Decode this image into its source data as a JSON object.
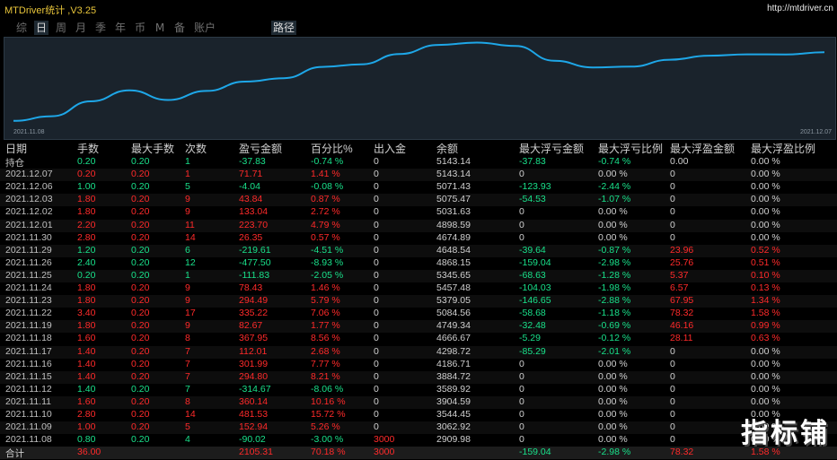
{
  "window": {
    "title": "MTDriver统计 ,V3.25",
    "url": "http://mtdriver.cn"
  },
  "tabs": [
    "综",
    "日",
    "周",
    "月",
    "季",
    "年",
    "币",
    "M",
    "备",
    "账户",
    "路径"
  ],
  "active_tabs": [
    1,
    10
  ],
  "chart": {
    "start_label": "2021.11.08",
    "end_label": "2021.12.07",
    "line_color": "#1ea7e8",
    "values": [
      2909.98,
      3062.92,
      3544.45,
      3904.59,
      3589.92,
      3884.72,
      4186.71,
      4298.72,
      4666.67,
      4749.34,
      5084.56,
      5379.05,
      5457.48,
      5345.65,
      4868.15,
      4648.54,
      4674.89,
      4898.59,
      5031.63,
      5075.47,
      5071.43,
      5143.14
    ]
  },
  "columns": [
    "日期",
    "手数",
    "最大手数",
    "次数",
    "盈亏金额",
    "百分比%",
    "出入金",
    "余额",
    "最大浮亏金额",
    "最大浮亏比例",
    "最大浮盈金额",
    "最大浮盈比例"
  ],
  "rows": [
    [
      "持仓",
      "0.20",
      "0.20",
      "1",
      "-37.83",
      "-0.74 %",
      "0",
      "5143.14",
      "-37.83",
      "-0.74 %",
      "0.00",
      "0.00 %"
    ],
    [
      "2021.12.07",
      "0.20",
      "0.20",
      "1",
      "71.71",
      "1.41 %",
      "0",
      "5143.14",
      "0",
      "0.00 %",
      "0",
      "0.00 %"
    ],
    [
      "2021.12.06",
      "1.00",
      "0.20",
      "5",
      "-4.04",
      "-0.08 %",
      "0",
      "5071.43",
      "-123.93",
      "-2.44 %",
      "0",
      "0.00 %"
    ],
    [
      "2021.12.03",
      "1.80",
      "0.20",
      "9",
      "43.84",
      "0.87 %",
      "0",
      "5075.47",
      "-54.53",
      "-1.07 %",
      "0",
      "0.00 %"
    ],
    [
      "2021.12.02",
      "1.80",
      "0.20",
      "9",
      "133.04",
      "2.72 %",
      "0",
      "5031.63",
      "0",
      "0.00 %",
      "0",
      "0.00 %"
    ],
    [
      "2021.12.01",
      "2.20",
      "0.20",
      "11",
      "223.70",
      "4.79 %",
      "0",
      "4898.59",
      "0",
      "0.00 %",
      "0",
      "0.00 %"
    ],
    [
      "2021.11.30",
      "2.80",
      "0.20",
      "14",
      "26.35",
      "0.57 %",
      "0",
      "4674.89",
      "0",
      "0.00 %",
      "0",
      "0.00 %"
    ],
    [
      "2021.11.29",
      "1.20",
      "0.20",
      "6",
      "-219.61",
      "-4.51 %",
      "0",
      "4648.54",
      "-39.64",
      "-0.87 %",
      "23.96",
      "0.52 %"
    ],
    [
      "2021.11.26",
      "2.40",
      "0.20",
      "12",
      "-477.50",
      "-8.93 %",
      "0",
      "4868.15",
      "-159.04",
      "-2.98 %",
      "25.76",
      "0.51 %"
    ],
    [
      "2021.11.25",
      "0.20",
      "0.20",
      "1",
      "-111.83",
      "-2.05 %",
      "0",
      "5345.65",
      "-68.63",
      "-1.28 %",
      "5.37",
      "0.10 %"
    ],
    [
      "2021.11.24",
      "1.80",
      "0.20",
      "9",
      "78.43",
      "1.46 %",
      "0",
      "5457.48",
      "-104.03",
      "-1.98 %",
      "6.57",
      "0.13 %"
    ],
    [
      "2021.11.23",
      "1.80",
      "0.20",
      "9",
      "294.49",
      "5.79 %",
      "0",
      "5379.05",
      "-146.65",
      "-2.88 %",
      "67.95",
      "1.34 %"
    ],
    [
      "2021.11.22",
      "3.40",
      "0.20",
      "17",
      "335.22",
      "7.06 %",
      "0",
      "5084.56",
      "-58.68",
      "-1.18 %",
      "78.32",
      "1.58 %"
    ],
    [
      "2021.11.19",
      "1.80",
      "0.20",
      "9",
      "82.67",
      "1.77 %",
      "0",
      "4749.34",
      "-32.48",
      "-0.69 %",
      "46.16",
      "0.99 %"
    ],
    [
      "2021.11.18",
      "1.60",
      "0.20",
      "8",
      "367.95",
      "8.56 %",
      "0",
      "4666.67",
      "-5.29",
      "-0.12 %",
      "28.11",
      "0.63 %"
    ],
    [
      "2021.11.17",
      "1.40",
      "0.20",
      "7",
      "112.01",
      "2.68 %",
      "0",
      "4298.72",
      "-85.29",
      "-2.01 %",
      "0",
      "0.00 %"
    ],
    [
      "2021.11.16",
      "1.40",
      "0.20",
      "7",
      "301.99",
      "7.77 %",
      "0",
      "4186.71",
      "0",
      "0.00 %",
      "0",
      "0.00 %"
    ],
    [
      "2021.11.15",
      "1.40",
      "0.20",
      "7",
      "294.80",
      "8.21 %",
      "0",
      "3884.72",
      "0",
      "0.00 %",
      "0",
      "0.00 %"
    ],
    [
      "2021.11.12",
      "1.40",
      "0.20",
      "7",
      "-314.67",
      "-8.06 %",
      "0",
      "3589.92",
      "0",
      "0.00 %",
      "0",
      "0.00 %"
    ],
    [
      "2021.11.11",
      "1.60",
      "0.20",
      "8",
      "360.14",
      "10.16 %",
      "0",
      "3904.59",
      "0",
      "0.00 %",
      "0",
      "0.00 %"
    ],
    [
      "2021.11.10",
      "2.80",
      "0.20",
      "14",
      "481.53",
      "15.72 %",
      "0",
      "3544.45",
      "0",
      "0.00 %",
      "0",
      "0.00 %"
    ],
    [
      "2021.11.09",
      "1.00",
      "0.20",
      "5",
      "152.94",
      "5.26 %",
      "0",
      "3062.92",
      "0",
      "0.00 %",
      "0",
      "0.00 %"
    ],
    [
      "2021.11.08",
      "0.80",
      "0.20",
      "4",
      "-90.02",
      "-3.00 %",
      "3000",
      "2909.98",
      "0",
      "0.00 %",
      "0",
      "0.00 %"
    ]
  ],
  "total": [
    "合计",
    "36.00",
    "",
    "",
    "2105.31",
    "70.18 %",
    "3000",
    "",
    "-159.04",
    "-2.98 %",
    "78.32",
    "1.58 %"
  ],
  "watermark": "指标铺",
  "colors": {
    "positive": "#19e08a",
    "negative": "#ff2a2a",
    "title": "#e8c53a",
    "chart_bg": "#1a232c"
  }
}
